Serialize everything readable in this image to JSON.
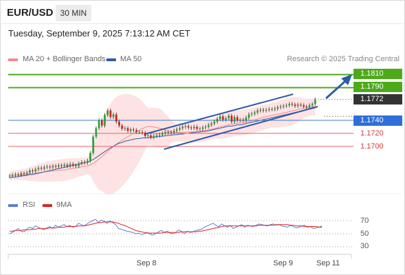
{
  "header": {
    "symbol": "EUR/USD",
    "timeframe": "30 MIN",
    "timestamp": "Tuesday, September 9, 2025 7:13:12 AM CET"
  },
  "legend": {
    "bollinger_label": "MA 20 + Bollinger Bands",
    "ma50_label": "MA 50",
    "credit": "Research © 2025 Trading Central"
  },
  "rsi_legend": {
    "rsi_label": "RSI",
    "ma_label": "9MA"
  },
  "colors": {
    "bollinger": "#f28a8a",
    "band_fill": "#fde3e3",
    "ma50": "#2f5aa8",
    "resistance": "#4caa1a",
    "support_line": "#3c78c8",
    "support_red": "#e06060",
    "current_tag": "#333333",
    "bull_candle": "#2e9e3a",
    "bear_candle": "#d62020",
    "arrow": "#2a5daa",
    "rsi": "#5b7fd6",
    "rsi_ma": "#e02020"
  },
  "chart_data": [
    {
      "type": "candlestick",
      "title": "EUR/USD 30 MIN",
      "x_ticks": [
        "Sep 8",
        "Sep 9",
        "Sep 11"
      ],
      "ylim": [
        1.165,
        1.183
      ],
      "levels": [
        {
          "label": "1.1810",
          "value": 1.181,
          "kind": "resistance"
        },
        {
          "label": "1.1790",
          "value": 1.179,
          "kind": "resistance"
        },
        {
          "label": "1.1772",
          "value": 1.1772,
          "kind": "current"
        },
        {
          "label": "1.1740",
          "value": 1.174,
          "kind": "pivot"
        },
        {
          "label": "1.1720",
          "value": 1.172,
          "kind": "support"
        },
        {
          "label": "1.1700",
          "value": 1.17,
          "kind": "support"
        }
      ],
      "close": [
        1.1655,
        1.1656,
        1.1657,
        1.1656,
        1.1659,
        1.1658,
        1.166,
        1.1663,
        1.1662,
        1.1665,
        1.1667,
        1.1666,
        1.1668,
        1.1669,
        1.1668,
        1.167,
        1.1669,
        1.1671,
        1.167,
        1.1672,
        1.167,
        1.1673,
        1.1671,
        1.167,
        1.1674,
        1.1676,
        1.1675,
        1.1678,
        1.169,
        1.1715,
        1.1728,
        1.174,
        1.1732,
        1.1748,
        1.1755,
        1.1745,
        1.1749,
        1.1738,
        1.1732,
        1.1727,
        1.1728,
        1.1724,
        1.1726,
        1.1725,
        1.1722,
        1.1722,
        1.1721,
        1.1716,
        1.1717,
        1.1714,
        1.1716,
        1.1717,
        1.1718,
        1.172,
        1.1722,
        1.1721,
        1.1722,
        1.1724,
        1.1726,
        1.1728,
        1.173,
        1.1731,
        1.1729,
        1.1728,
        1.173,
        1.1727,
        1.1727,
        1.1729,
        1.173,
        1.1733,
        1.1735,
        1.1738,
        1.1742,
        1.1746,
        1.1741,
        1.1743,
        1.1747,
        1.1738,
        1.1745,
        1.174,
        1.1741,
        1.174,
        1.1744,
        1.1749,
        1.175,
        1.1752,
        1.1755,
        1.1756,
        1.1755,
        1.1756,
        1.1757,
        1.1757,
        1.1758,
        1.176,
        1.1761,
        1.1762,
        1.1763,
        1.1765,
        1.1764,
        1.1762,
        1.1764,
        1.1763,
        1.1761,
        1.176,
        1.1763,
        1.1765,
        1.1772
      ],
      "ma50": [
        1.1652,
        1.1653,
        1.1653,
        1.1654,
        1.1655,
        1.1655,
        1.1656,
        1.1657,
        1.1657,
        1.1658,
        1.1659,
        1.166,
        1.1661,
        1.1662,
        1.1663,
        1.1664,
        1.1665,
        1.1666,
        1.1667,
        1.1668,
        1.1669,
        1.167,
        1.1671,
        1.1672,
        1.1673,
        1.1674,
        1.1675,
        1.1676,
        1.1678,
        1.168,
        1.1683,
        1.1686,
        1.1689,
        1.1692,
        1.1695,
        1.1698,
        1.17,
        1.1703,
        1.1705,
        1.1706,
        1.1708,
        1.1709,
        1.171,
        1.1711,
        1.1712,
        1.1712,
        1.1713,
        1.1713,
        1.1713,
        1.1714,
        1.1714,
        1.1715,
        1.1715,
        1.1716,
        1.1716,
        1.1717,
        1.1717,
        1.1718,
        1.1718,
        1.1719,
        1.1719,
        1.172,
        1.172,
        1.1721,
        1.1721,
        1.1722,
        1.1722,
        1.1723,
        1.1723,
        1.1724,
        1.1725,
        1.1726,
        1.1727,
        1.1728,
        1.1729,
        1.173,
        1.1731,
        1.1731,
        1.1732,
        1.1733,
        1.1733,
        1.1734,
        1.1735,
        1.1736,
        1.1737,
        1.1738,
        1.1739,
        1.174,
        1.1741,
        1.1742,
        1.1743,
        1.1744,
        1.1745,
        1.1746,
        1.1747,
        1.1748,
        1.1749,
        1.175,
        1.1751,
        1.1752,
        1.1753,
        1.1754,
        1.1755,
        1.1756,
        1.1757,
        1.1758,
        1.1759
      ]
    },
    {
      "type": "line",
      "title": "RSI",
      "ylim": [
        20,
        80
      ],
      "y_ticks": [
        70,
        50,
        30
      ],
      "series": [
        {
          "name": "RSI",
          "values": [
            50,
            52,
            55,
            58,
            54,
            53,
            57,
            60,
            58,
            62,
            60,
            58,
            56,
            59,
            61,
            58,
            63,
            60,
            62,
            64,
            61,
            63,
            60,
            61,
            66,
            64,
            62,
            65,
            68,
            70,
            72,
            67,
            71,
            69,
            66,
            70,
            67,
            64,
            58,
            57,
            55,
            54,
            53,
            52,
            50,
            51,
            49,
            50,
            52,
            49,
            48,
            50,
            53,
            55,
            52,
            54,
            51,
            50,
            52,
            56,
            53,
            50,
            54,
            52,
            53,
            55,
            56,
            57,
            60,
            62,
            64,
            66,
            63,
            61,
            65,
            62,
            60,
            63,
            58,
            60,
            62,
            64,
            60,
            63,
            62,
            61,
            63,
            65,
            64,
            63,
            62,
            64,
            65,
            63,
            64,
            62,
            61,
            60,
            63,
            61,
            59,
            60,
            62,
            63,
            60,
            61,
            58,
            59,
            60,
            62
          ]
        },
        {
          "name": "9MA",
          "values": [
            54,
            54,
            55,
            55,
            55,
            56,
            56,
            56,
            57,
            57,
            58,
            58,
            58,
            58,
            59,
            59,
            59,
            60,
            60,
            60,
            61,
            61,
            61,
            61,
            62,
            62,
            62,
            63,
            64,
            65,
            66,
            67,
            67,
            68,
            68,
            68,
            68,
            67,
            66,
            64,
            63,
            61,
            59,
            57,
            55,
            54,
            53,
            52,
            51,
            51,
            51,
            51,
            51,
            51,
            52,
            52,
            52,
            52,
            52,
            52,
            53,
            53,
            53,
            53,
            53,
            53,
            54,
            54,
            55,
            56,
            57,
            58,
            59,
            60,
            61,
            62,
            62,
            62,
            62,
            62,
            62,
            62,
            62,
            62,
            62,
            62,
            62,
            63,
            63,
            63,
            63,
            63,
            63,
            64,
            64,
            64,
            64,
            64,
            63,
            63,
            62,
            62,
            62,
            61,
            61,
            61,
            61,
            61,
            60,
            60
          ]
        }
      ]
    }
  ]
}
